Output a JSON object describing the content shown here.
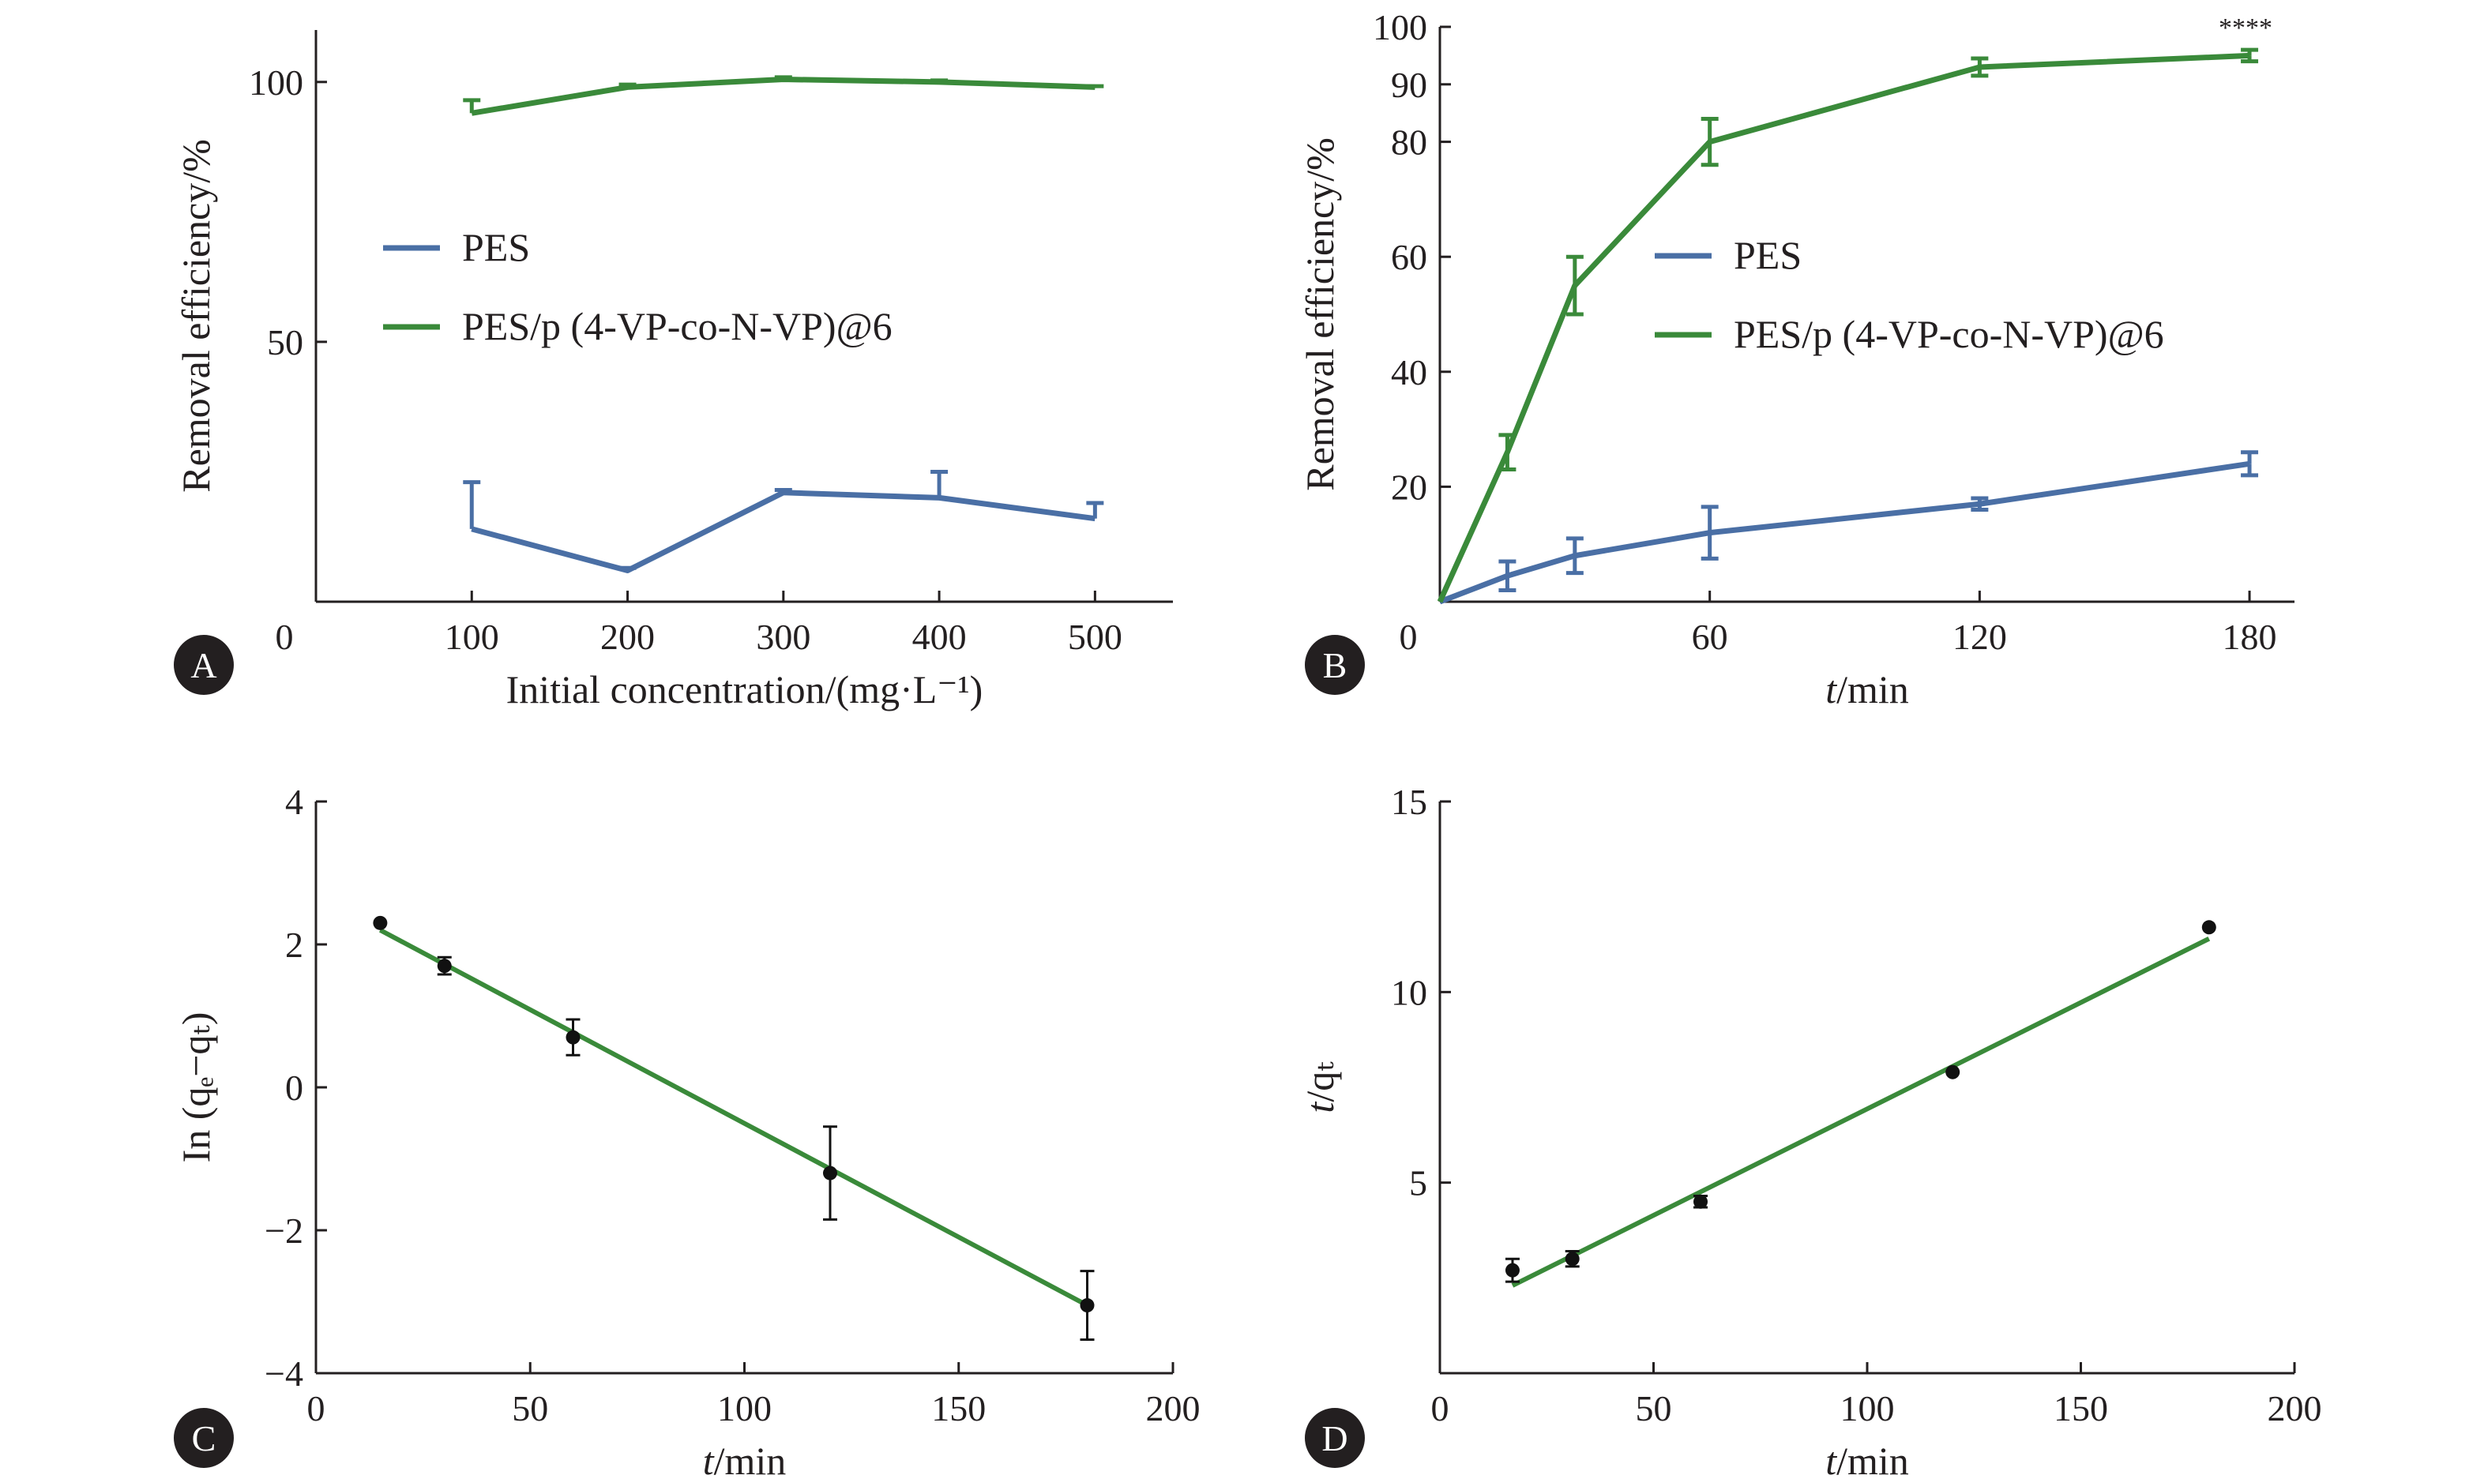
{
  "colors": {
    "pes": "#4a6fa5",
    "copolymer": "#3a8a3a",
    "points": "#111111",
    "badge": "#231f20"
  },
  "chart_data": [
    {
      "panel": "A",
      "type": "line",
      "xlabel": "Initial concentration/(mg·L⁻¹)",
      "ylabel": "Removal efficiency/%",
      "xlim": [
        0,
        550
      ],
      "ylim": [
        0,
        110
      ],
      "x_ticks": [
        0,
        100,
        200,
        300,
        400,
        500
      ],
      "y_ticks": [
        50,
        100
      ],
      "legend_position": "center-left",
      "series": [
        {
          "name": "PES",
          "color_key": "pes",
          "x": [
            100,
            200,
            300,
            400,
            500
          ],
          "y": [
            14,
            6,
            21,
            20,
            16
          ],
          "err": [
            9,
            0.5,
            0.5,
            5,
            3
          ]
        },
        {
          "name": "PES/p (4-VP-co-N-VP)@6",
          "color_key": "copolymer",
          "x": [
            100,
            200,
            300,
            400,
            500
          ],
          "y": [
            94,
            99,
            100.5,
            100,
            99
          ],
          "err": [
            2.5,
            0.5,
            0.4,
            0.3,
            0.2
          ]
        }
      ]
    },
    {
      "panel": "B",
      "type": "line",
      "xlabel_italic": "t",
      "xlabel_rest": "/min",
      "ylabel": "Removal efficiency/%",
      "xlim": [
        0,
        190
      ],
      "ylim": [
        0,
        100
      ],
      "x_ticks": [
        0,
        60,
        120,
        180
      ],
      "y_ticks": [
        20,
        40,
        60,
        80,
        90,
        100
      ],
      "legend_position": "center-right",
      "annotation": "****",
      "series": [
        {
          "name": "PES",
          "color_key": "pes",
          "x": [
            0,
            15,
            30,
            60,
            120,
            180
          ],
          "y": [
            0,
            4.5,
            8,
            12,
            17,
            24
          ],
          "err": [
            0,
            2.5,
            3,
            4.5,
            1,
            2
          ]
        },
        {
          "name": "PES/p (4-VP-co-N-VP)@6",
          "color_key": "copolymer",
          "x": [
            0,
            15,
            30,
            60,
            120,
            180
          ],
          "y": [
            0,
            26,
            55,
            80,
            93,
            95
          ],
          "err": [
            0,
            3,
            5,
            4,
            1.5,
            1
          ]
        }
      ]
    },
    {
      "panel": "C",
      "type": "scatter",
      "xlabel_italic": "t",
      "xlabel_rest": "/min",
      "ylabel": "In (qₑ−qₜ)",
      "xlim": [
        0,
        200
      ],
      "ylim": [
        -4,
        4
      ],
      "x_ticks": [
        0,
        50,
        100,
        150,
        200
      ],
      "y_ticks": [
        -4,
        -2,
        0,
        2,
        4
      ],
      "y_tick_labels": [
        "−4",
        "−2",
        "0",
        "2",
        "4"
      ],
      "points": {
        "x": [
          15,
          30,
          60,
          120,
          180
        ],
        "y": [
          2.3,
          1.7,
          0.7,
          -1.2,
          -3.05
        ],
        "err": [
          0,
          0.12,
          0.25,
          0.65,
          0.48
        ]
      },
      "fit_line": {
        "x": [
          15,
          180
        ],
        "y": [
          2.2,
          -3.05
        ]
      }
    },
    {
      "panel": "D",
      "type": "scatter",
      "xlabel_italic": "t",
      "xlabel_rest": "/min",
      "ylabel_italic": "t",
      "ylabel_rest": "/qₜ",
      "xlim": [
        0,
        200
      ],
      "ylim": [
        0,
        15
      ],
      "x_ticks": [
        0,
        50,
        100,
        150,
        200
      ],
      "y_ticks": [
        5,
        10,
        15
      ],
      "points": {
        "x": [
          17,
          31,
          61,
          120,
          180
        ],
        "y": [
          2.7,
          3.0,
          4.5,
          7.9,
          11.7
        ],
        "err": [
          0.3,
          0.2,
          0.15,
          0,
          0
        ]
      },
      "fit_line": {
        "x": [
          17,
          180
        ],
        "y": [
          2.3,
          11.4
        ]
      }
    }
  ]
}
